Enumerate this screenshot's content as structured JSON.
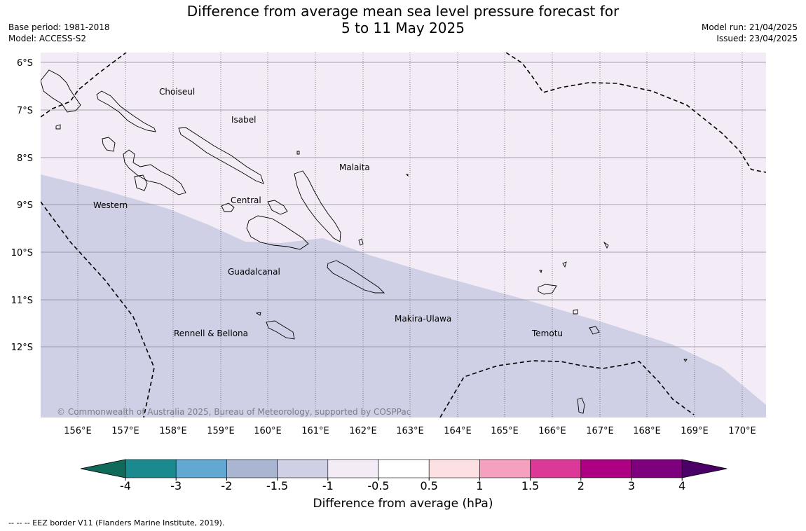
{
  "title": {
    "line1": "Difference from average mean sea level pressure forecast for",
    "line2": "5 to 11 May 2025"
  },
  "meta_left": {
    "base_period": "Base period: 1981-2018",
    "model": "Model: ACCESS-S2"
  },
  "meta_right": {
    "model_run": "Model run: 21/04/2025",
    "issued": "Issued: 23/04/2025"
  },
  "map": {
    "lon_labels": [
      "156°E",
      "157°E",
      "158°E",
      "159°E",
      "160°E",
      "161°E",
      "162°E",
      "163°E",
      "164°E",
      "165°E",
      "166°E",
      "167°E",
      "168°E",
      "169°E",
      "170°E"
    ],
    "lat_labels": [
      "6°S",
      "7°S",
      "8°S",
      "9°S",
      "10°S",
      "11°S",
      "12°S"
    ],
    "province_labels": [
      "Choiseul",
      "Isabel",
      "Malaita",
      "Western",
      "Central",
      "Guadalcanal",
      "Makira-Ulawa",
      "Rennell & Bellona",
      "Temotu"
    ],
    "copyright": "© Commonwealth of Australia 2025, Bureau of Meteorology, supported by COSPPac",
    "shading": {
      "upper_category": "-1 to -0.5",
      "lower_category": "-1.5 to -1"
    }
  },
  "colorbar": {
    "ticks": [
      "-4",
      "-3",
      "-2",
      "-1.5",
      "-1",
      "-0.5",
      "0.5",
      "1",
      "1.5",
      "2",
      "3",
      "4"
    ],
    "colors": [
      "#1b8a8f",
      "#62a8d2",
      "#a9b5d1",
      "#cfd0e5",
      "#f3ebf5",
      "#ffffff",
      "#fde0e2",
      "#f6a0bf",
      "#dc3898",
      "#ad0082",
      "#7d007d"
    ],
    "under_color": "#0f6a5a",
    "over_color": "#4a0067",
    "label": "Difference from average (hPa)"
  },
  "footer": "--  --  -- EEZ border V11 (Flanders Marine Institute, 2019)."
}
